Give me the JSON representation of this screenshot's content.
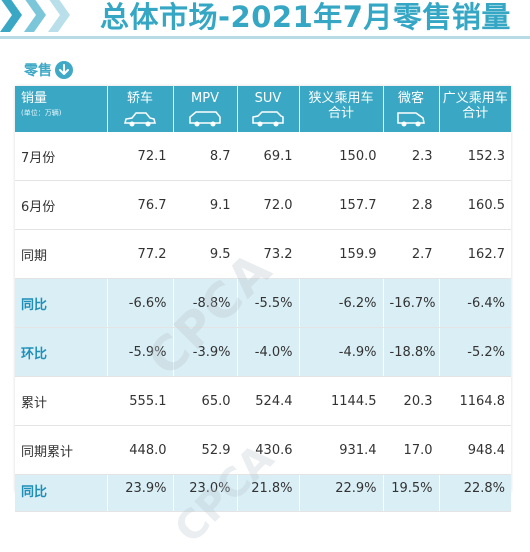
{
  "header": {
    "title": "总体市场-2021年7月零售销量"
  },
  "section": {
    "label": "零售",
    "icon": "arrow-down-circle-icon"
  },
  "table": {
    "corner_label": "销量",
    "corner_sub": "(单位：万辆)",
    "columns": [
      {
        "line1": "轿车",
        "line2": "",
        "icon": "sedan-icon"
      },
      {
        "line1": "MPV",
        "line2": "",
        "icon": "mpv-icon"
      },
      {
        "line1": "SUV",
        "line2": "",
        "icon": "suv-icon"
      },
      {
        "line1": "狭义乘用车",
        "line2": "合计",
        "icon": ""
      },
      {
        "line1": "微客",
        "line2": "",
        "icon": "minivan-icon"
      },
      {
        "line1": "广义乘用车",
        "line2": "合计",
        "icon": ""
      }
    ],
    "rows": [
      {
        "label": "7月份",
        "values": [
          "72.1",
          "8.7",
          "69.1",
          "150.0",
          "2.3",
          "152.3"
        ],
        "highlight": false
      },
      {
        "label": "6月份",
        "values": [
          "76.7",
          "9.1",
          "72.0",
          "157.7",
          "2.8",
          "160.5"
        ],
        "highlight": false
      },
      {
        "label": "同期",
        "values": [
          "77.2",
          "9.5",
          "73.2",
          "159.9",
          "2.7",
          "162.7"
        ],
        "highlight": false
      },
      {
        "label": "同比",
        "values": [
          "-6.6%",
          "-8.8%",
          "-5.5%",
          "-6.2%",
          "-16.7%",
          "-6.4%"
        ],
        "highlight": true
      },
      {
        "label": "环比",
        "values": [
          "-5.9%",
          "-3.9%",
          "-4.0%",
          "-4.9%",
          "-18.8%",
          "-5.2%"
        ],
        "highlight": true
      },
      {
        "label": "累计",
        "values": [
          "555.1",
          "65.0",
          "524.4",
          "1144.5",
          "20.3",
          "1164.8"
        ],
        "highlight": false
      },
      {
        "label": "同期累计",
        "values": [
          "448.0",
          "52.9",
          "430.6",
          "931.4",
          "17.0",
          "948.4"
        ],
        "highlight": false
      },
      {
        "label": "同比",
        "values": [
          "23.9%",
          "23.0%",
          "21.8%",
          "22.9%",
          "19.5%",
          "22.8%"
        ],
        "highlight": true
      }
    ]
  },
  "watermark": {
    "text1": "CPCA",
    "text2": "CPCA"
  },
  "colors": {
    "accent": "#3aa8c4",
    "highlight_row": "#d9eef5",
    "highlight_label": "#1e90b8"
  }
}
